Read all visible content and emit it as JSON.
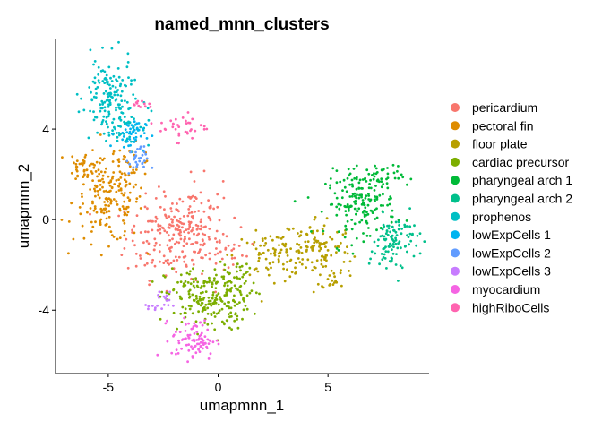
{
  "chart_data": {
    "type": "scatter",
    "title": "named_mnn_clusters",
    "xlabel": "umapmnn_1",
    "ylabel": "umapmnn_2",
    "xlim": [
      -7.4,
      9.6
    ],
    "ylim": [
      -6.8,
      8.0
    ],
    "xticks": [
      -5,
      0,
      5
    ],
    "xtick_labels": [
      "-5",
      "0",
      "5"
    ],
    "yticks": [
      4,
      0,
      -4
    ],
    "ytick_labels": [
      "4",
      "0",
      "-4"
    ],
    "grid": false,
    "legend_position": "right",
    "series": [
      {
        "name": "pericardium",
        "color": "#F8766D",
        "clusters": [
          {
            "cx": -2.0,
            "cy": -0.8,
            "sx": 1.1,
            "sy": 0.9,
            "n": 190
          },
          {
            "cx": -1.2,
            "cy": 0.3,
            "sx": 0.7,
            "sy": 0.8,
            "n": 60
          },
          {
            "cx": 0.5,
            "cy": -1.5,
            "sx": 0.6,
            "sy": 0.5,
            "n": 25
          }
        ]
      },
      {
        "name": "pectoral fin",
        "color": "#DE8C00",
        "clusters": [
          {
            "cx": -5.0,
            "cy": 0.8,
            "sx": 0.8,
            "sy": 0.9,
            "n": 170
          },
          {
            "cx": -6.1,
            "cy": 2.4,
            "sx": 0.35,
            "sy": 0.35,
            "n": 35
          },
          {
            "cx": -4.1,
            "cy": 2.3,
            "sx": 0.6,
            "sy": 0.5,
            "n": 35
          }
        ]
      },
      {
        "name": "floor plate",
        "color": "#B79F00",
        "clusters": [
          {
            "cx": 2.5,
            "cy": -1.6,
            "sx": 0.9,
            "sy": 0.5,
            "n": 80
          },
          {
            "cx": 4.5,
            "cy": -1.2,
            "sx": 0.8,
            "sy": 0.7,
            "n": 100
          },
          {
            "cx": 5.3,
            "cy": -2.5,
            "sx": 0.3,
            "sy": 0.3,
            "n": 20
          }
        ]
      },
      {
        "name": "cardiac precursor",
        "color": "#7CAE00",
        "clusters": [
          {
            "cx": -0.5,
            "cy": -3.5,
            "sx": 0.95,
            "sy": 0.7,
            "n": 210
          },
          {
            "cx": 0.8,
            "cy": -2.8,
            "sx": 0.5,
            "sy": 0.5,
            "n": 40
          }
        ]
      },
      {
        "name": "pharyngeal arch 1",
        "color": "#00BA38",
        "clusters": [
          {
            "cx": 6.5,
            "cy": 0.7,
            "sx": 0.8,
            "sy": 0.7,
            "n": 170
          },
          {
            "cx": 7.4,
            "cy": 1.9,
            "sx": 0.5,
            "sy": 0.35,
            "n": 40
          }
        ]
      },
      {
        "name": "pharyngeal arch 2",
        "color": "#00C08B",
        "clusters": [
          {
            "cx": 8.1,
            "cy": -0.8,
            "sx": 0.55,
            "sy": 0.5,
            "n": 80
          },
          {
            "cx": 7.8,
            "cy": -1.7,
            "sx": 0.35,
            "sy": 0.4,
            "n": 25
          }
        ]
      },
      {
        "name": "prophenos",
        "color": "#00BFC4",
        "clusters": [
          {
            "cx": -5.0,
            "cy": 5.5,
            "sx": 0.55,
            "sy": 0.8,
            "n": 130
          },
          {
            "cx": -4.3,
            "cy": 4.2,
            "sx": 0.6,
            "sy": 0.5,
            "n": 60
          }
        ]
      },
      {
        "name": "lowExpCells 1",
        "color": "#00B4F0",
        "clusters": [
          {
            "cx": -4.0,
            "cy": 3.8,
            "sx": 0.35,
            "sy": 0.35,
            "n": 45
          }
        ]
      },
      {
        "name": "lowExpCells 2",
        "color": "#619CFF",
        "clusters": [
          {
            "cx": -3.7,
            "cy": 2.6,
            "sx": 0.25,
            "sy": 0.3,
            "n": 30
          }
        ]
      },
      {
        "name": "lowExpCells 3",
        "color": "#C77CFF",
        "clusters": [
          {
            "cx": -2.7,
            "cy": -3.7,
            "sx": 0.25,
            "sy": 0.25,
            "n": 20
          }
        ]
      },
      {
        "name": "myocardium",
        "color": "#F564E3",
        "clusters": [
          {
            "cx": -1.1,
            "cy": -5.3,
            "sx": 0.5,
            "sy": 0.45,
            "n": 90
          }
        ]
      },
      {
        "name": "highRiboCells",
        "color": "#FF64B0",
        "clusters": [
          {
            "cx": -1.6,
            "cy": 4.1,
            "sx": 0.55,
            "sy": 0.3,
            "n": 35
          },
          {
            "cx": -3.4,
            "cy": 5.1,
            "sx": 0.25,
            "sy": 0.12,
            "n": 12
          }
        ]
      }
    ]
  }
}
